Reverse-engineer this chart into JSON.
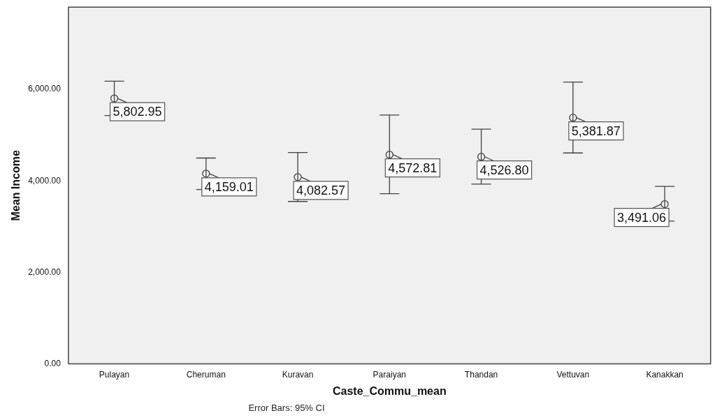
{
  "chart_data": {
    "type": "scatter",
    "xlabel": "Caste_Commu_mean",
    "ylabel": "Mean Income",
    "categories": [
      "Pulayan",
      "Cheruman",
      "Kuravan",
      "Paraiyan",
      "Thandan",
      "Vettuvan",
      "Kanakkan"
    ],
    "series": [
      {
        "color": "#404040",
        "values": [
          5802.95,
          4159.01,
          4082.57,
          4572.81,
          4526.8,
          5381.87,
          3491.06
        ],
        "errors": [
          [
            5430,
            6180
          ],
          [
            3810,
            4500
          ],
          [
            3550,
            4620
          ],
          [
            3720,
            5440
          ],
          [
            3930,
            5130
          ],
          [
            4610,
            6160
          ],
          [
            3120,
            3880
          ]
        ],
        "value_labels": [
          "5,802.95",
          "4,159.01",
          "4,082.57",
          "4,572.81",
          "4,526.80",
          "5,381.87",
          "3,491.06"
        ]
      }
    ],
    "ylim": [
      0,
      7800
    ],
    "yticks": [
      {
        "value": 0,
        "label": "0.00"
      },
      {
        "value": 2000,
        "label": "2,000.00"
      },
      {
        "value": 4000,
        "label": "4,000.00"
      },
      {
        "value": 6000,
        "label": "6,000.00"
      }
    ],
    "marker": "circle",
    "grid": false,
    "legend": false,
    "annotations": [
      "Error Bars: 95% CI"
    ]
  }
}
